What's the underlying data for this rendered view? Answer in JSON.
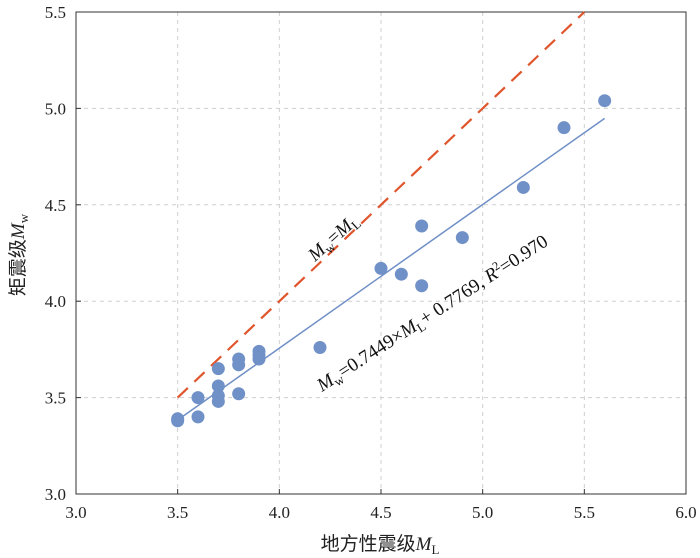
{
  "chart_data": {
    "type": "scatter",
    "title": "",
    "xlabel": "地方性震级",
    "xlabel_var": "M",
    "xlabel_sub": "L",
    "ylabel": "矩震级",
    "ylabel_var": "M",
    "ylabel_sub": "w",
    "xlim": [
      3.0,
      6.0
    ],
    "ylim": [
      3.0,
      5.5
    ],
    "xticks": [
      "3.0",
      "3.5",
      "4.0",
      "4.5",
      "5.0",
      "5.5",
      "6.0"
    ],
    "yticks": [
      "3.0",
      "3.5",
      "4.0",
      "4.5",
      "5.0",
      "5.5"
    ],
    "grid": true,
    "colors": {
      "points": "#7090c8",
      "fit_line": "#6f8fc6",
      "identity_line": "#e0552b"
    },
    "points": [
      {
        "x": 3.5,
        "y": 3.38
      },
      {
        "x": 3.5,
        "y": 3.39
      },
      {
        "x": 3.6,
        "y": 3.4
      },
      {
        "x": 3.6,
        "y": 3.5
      },
      {
        "x": 3.7,
        "y": 3.48
      },
      {
        "x": 3.7,
        "y": 3.51
      },
      {
        "x": 3.7,
        "y": 3.56
      },
      {
        "x": 3.7,
        "y": 3.65
      },
      {
        "x": 3.8,
        "y": 3.52
      },
      {
        "x": 3.8,
        "y": 3.67
      },
      {
        "x": 3.8,
        "y": 3.7
      },
      {
        "x": 3.9,
        "y": 3.7
      },
      {
        "x": 3.9,
        "y": 3.72
      },
      {
        "x": 3.9,
        "y": 3.74
      },
      {
        "x": 4.2,
        "y": 3.76
      },
      {
        "x": 4.5,
        "y": 4.17
      },
      {
        "x": 4.6,
        "y": 4.14
      },
      {
        "x": 4.7,
        "y": 4.08
      },
      {
        "x": 4.7,
        "y": 4.39
      },
      {
        "x": 4.9,
        "y": 4.33
      },
      {
        "x": 5.2,
        "y": 4.59
      },
      {
        "x": 5.4,
        "y": 4.9
      },
      {
        "x": 5.6,
        "y": 5.04
      }
    ],
    "fit_line": {
      "slope": 0.7449,
      "intercept": 0.7769,
      "x": [
        3.5,
        5.6
      ]
    },
    "identity_line": {
      "x": [
        3.5,
        5.5
      ]
    },
    "annotations": {
      "identity": "Mw=ML",
      "fit_equation": "Mw=0.7449×ML+ 0.7769, R²=0.970"
    }
  }
}
